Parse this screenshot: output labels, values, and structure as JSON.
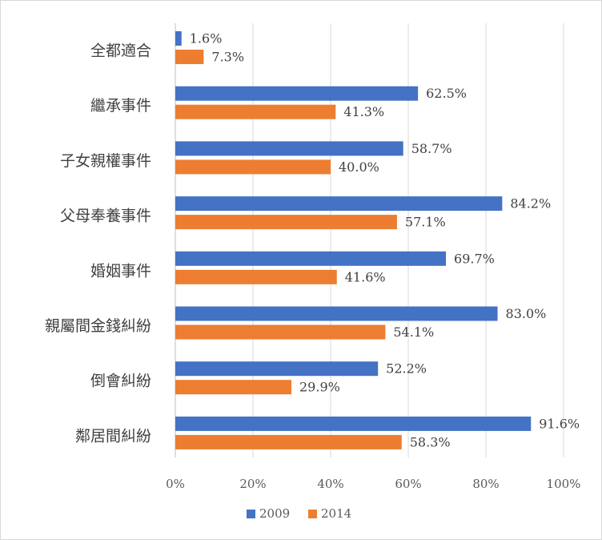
{
  "chart_data": {
    "type": "bar",
    "orientation": "horizontal",
    "categories": [
      "全都適合",
      "繼承事件",
      "子女親權事件",
      "父母奉養事件",
      "婚姻事件",
      "親屬間金錢糾紛",
      "倒會糾紛",
      "鄰居間糾紛"
    ],
    "series": [
      {
        "name": "2009",
        "color": "#4472c4",
        "values": [
          1.6,
          62.5,
          58.7,
          84.2,
          69.7,
          83.0,
          52.2,
          91.6
        ],
        "labels": [
          "1.6%",
          "62.5%",
          "58.7%",
          "84.2%",
          "69.7%",
          "83.0%",
          "52.2%",
          "91.6%"
        ]
      },
      {
        "name": "2014",
        "color": "#ed7d31",
        "values": [
          7.3,
          41.3,
          40.0,
          57.1,
          41.6,
          54.1,
          29.9,
          58.3
        ],
        "labels": [
          "7.3%",
          "41.3%",
          "40.0%",
          "57.1%",
          "41.6%",
          "54.1%",
          "29.9%",
          "58.3%"
        ]
      }
    ],
    "xlim": [
      0,
      100
    ],
    "xticks": [
      0,
      20,
      40,
      60,
      80,
      100
    ],
    "xtick_labels": [
      "0%",
      "20%",
      "40%",
      "60%",
      "80%",
      "100%"
    ],
    "grid": true,
    "legend": "bottom"
  }
}
